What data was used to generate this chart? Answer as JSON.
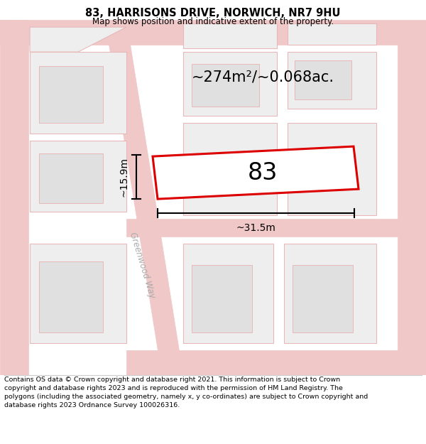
{
  "title": "83, HARRISONS DRIVE, NORWICH, NR7 9HU",
  "subtitle": "Map shows position and indicative extent of the property.",
  "area_text": "~274m²/~0.068ac.",
  "label_83": "83",
  "dim_width": "~31.5m",
  "dim_height": "~15.9m",
  "street_label": "Greenwood Way",
  "footer": "Contains OS data © Crown copyright and database right 2021. This information is subject to Crown copyright and database rights 2023 and is reproduced with the permission of HM Land Registry. The polygons (including the associated geometry, namely x, y co-ordinates) are subject to Crown copyright and database rights 2023 Ordnance Survey 100026316.",
  "bg_color": "#ffffff",
  "map_bg": "#ffffff",
  "building_fill": "#eeeeee",
  "building_edge": "#e8b8b8",
  "road_stroke": "#f0c8c8",
  "highlight_color": "#dd0000",
  "title_color": "#000000",
  "footer_color": "#000000",
  "street_label_color": "#aaaaaa",
  "dim_color": "#000000",
  "area_text_color": "#000000"
}
